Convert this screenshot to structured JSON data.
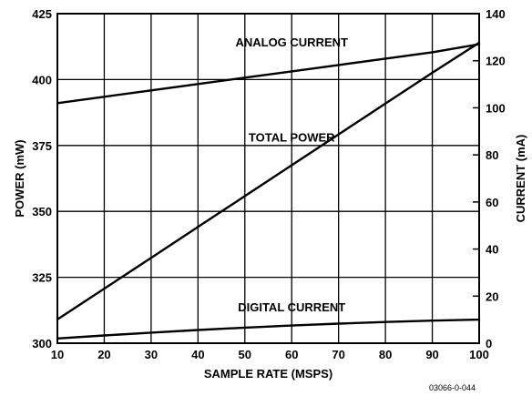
{
  "chart_data": {
    "type": "line",
    "xlabel": "SAMPLE RATE (MSPS)",
    "ylabel_left": "POWER (mW)",
    "ylabel_right": "CURRENT (mA)",
    "xlim": [
      10,
      100
    ],
    "ylim_left": [
      300,
      425
    ],
    "ylim_right": [
      0,
      140
    ],
    "x_ticks": [
      10,
      20,
      30,
      40,
      50,
      60,
      70,
      80,
      90,
      100
    ],
    "y_left_ticks": [
      300,
      325,
      350,
      375,
      400,
      425
    ],
    "y_right_ticks": [
      0,
      20,
      40,
      60,
      80,
      100,
      120,
      140
    ],
    "grid": true,
    "series": [
      {
        "name": "ANALOG CURRENT",
        "axis": "right",
        "x": [
          10,
          20,
          30,
          40,
          50,
          60,
          70,
          80,
          90,
          100
        ],
        "y": [
          102,
          104.7,
          107.4,
          110.1,
          112.8,
          115.5,
          118.2,
          120.9,
          123.6,
          127
        ]
      },
      {
        "name": "TOTAL POWER",
        "axis": "left",
        "x": [
          10,
          20,
          30,
          40,
          50,
          60,
          70,
          80,
          90,
          100
        ],
        "y": [
          309,
          320.7,
          332.4,
          344.1,
          355.8,
          367.5,
          379.2,
          390.9,
          402.6,
          414
        ]
      },
      {
        "name": "DIGITAL CURRENT",
        "axis": "right",
        "x": [
          10,
          20,
          30,
          40,
          50,
          60,
          70,
          80,
          90,
          100
        ],
        "y": [
          2,
          3.3,
          4.5,
          5.6,
          6.6,
          7.5,
          8.3,
          9,
          9.6,
          10
        ]
      }
    ],
    "footnote": "03066-0-044"
  }
}
